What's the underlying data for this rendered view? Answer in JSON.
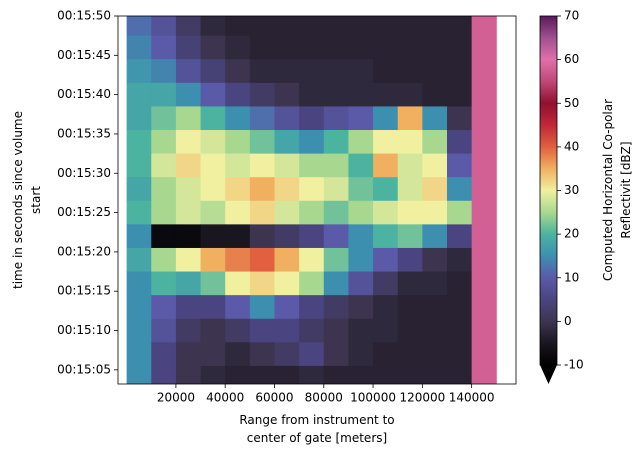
{
  "chart_data": {
    "type": "heatmap",
    "xlabel": "Range from instrument to\ncenter of gate [meters]",
    "ylabel": "time in seconds since volume\nstart",
    "x": [
      5000,
      15000,
      25000,
      35000,
      45000,
      55000,
      65000,
      75000,
      85000,
      95000,
      105000,
      115000,
      125000,
      135000,
      145000
    ],
    "y": [
      949,
      946,
      943,
      940,
      937,
      934,
      931,
      928,
      925,
      922,
      919,
      916,
      913,
      910,
      907,
      904
    ],
    "values": [
      [
        12,
        8,
        2,
        -2,
        -3,
        -3,
        -3,
        -3,
        -3,
        -3,
        -3,
        -3,
        -3,
        -3,
        58
      ],
      [
        14,
        10,
        4,
        0,
        -2,
        -3,
        -3,
        -3,
        -3,
        -3,
        -3,
        -3,
        -3,
        -3,
        58
      ],
      [
        16,
        14,
        8,
        4,
        0,
        -2,
        -2,
        -2,
        -2,
        -2,
        -3,
        -3,
        -3,
        -3,
        58
      ],
      [
        18,
        18,
        15,
        10,
        5,
        2,
        0,
        -2,
        -2,
        -2,
        -2,
        -2,
        -3,
        -3,
        58
      ],
      [
        18,
        22,
        25,
        20,
        15,
        12,
        8,
        5,
        8,
        10,
        15,
        35,
        15,
        0,
        58
      ],
      [
        20,
        25,
        30,
        28,
        25,
        22,
        18,
        15,
        20,
        25,
        30,
        30,
        25,
        5,
        58
      ],
      [
        20,
        28,
        32,
        30,
        28,
        30,
        28,
        25,
        25,
        20,
        35,
        28,
        30,
        10,
        58
      ],
      [
        18,
        25,
        28,
        30,
        32,
        35,
        32,
        30,
        28,
        22,
        20,
        28,
        32,
        15,
        58
      ],
      [
        20,
        25,
        28,
        26,
        30,
        32,
        28,
        25,
        22,
        25,
        28,
        30,
        30,
        25,
        58
      ],
      [
        15,
        -8,
        -8,
        -5,
        -5,
        0,
        2,
        5,
        10,
        15,
        20,
        22,
        15,
        5,
        58
      ],
      [
        18,
        25,
        30,
        35,
        38,
        40,
        35,
        30,
        22,
        15,
        10,
        5,
        0,
        -2,
        58
      ],
      [
        15,
        20,
        18,
        22,
        30,
        32,
        30,
        25,
        15,
        8,
        2,
        -2,
        -2,
        -3,
        58
      ],
      [
        15,
        10,
        5,
        5,
        10,
        15,
        10,
        5,
        2,
        0,
        -2,
        -3,
        -3,
        -3,
        58
      ],
      [
        15,
        8,
        2,
        0,
        2,
        5,
        5,
        2,
        0,
        -2,
        -2,
        -3,
        -3,
        -3,
        58
      ],
      [
        15,
        5,
        0,
        0,
        -2,
        0,
        2,
        5,
        0,
        -2,
        -3,
        -3,
        -3,
        -3,
        58
      ],
      [
        15,
        5,
        0,
        -2,
        -3,
        -3,
        -3,
        -2,
        -3,
        -3,
        -3,
        -3,
        -3,
        -3,
        58
      ]
    ],
    "xlim": [
      -3500,
      158000
    ],
    "ylim": [
      903.2,
      950
    ],
    "xticks": [
      20000,
      40000,
      60000,
      80000,
      100000,
      120000,
      140000
    ],
    "yticks": [
      {
        "value": 905,
        "label": "00:15:05"
      },
      {
        "value": 910,
        "label": "00:15:10"
      },
      {
        "value": 915,
        "label": "00:15:15"
      },
      {
        "value": 920,
        "label": "00:15:20"
      },
      {
        "value": 925,
        "label": "00:15:25"
      },
      {
        "value": 930,
        "label": "00:15:30"
      },
      {
        "value": 935,
        "label": "00:15:35"
      },
      {
        "value": 940,
        "label": "00:15:40"
      },
      {
        "value": 945,
        "label": "00:15:45"
      },
      {
        "value": 950,
        "label": "00:15:50"
      }
    ],
    "colorbar": {
      "label": "Computed Horizontal Co-polar\nReflectivit [dBZ]",
      "lim": [
        -10,
        70
      ],
      "ticks": [
        -10,
        0,
        10,
        20,
        30,
        40,
        50,
        60,
        70
      ],
      "colors": [
        "#000000",
        "#1a1620",
        "#3d3550",
        "#4a4580",
        "#5a5aa8",
        "#3d8fb0",
        "#4cb3a0",
        "#a8d890",
        "#f0f0a0",
        "#f0b060",
        "#e06040",
        "#c02838",
        "#901030",
        "#c04878",
        "#e070a8",
        "#a05090",
        "#5a1a5a"
      ]
    }
  }
}
